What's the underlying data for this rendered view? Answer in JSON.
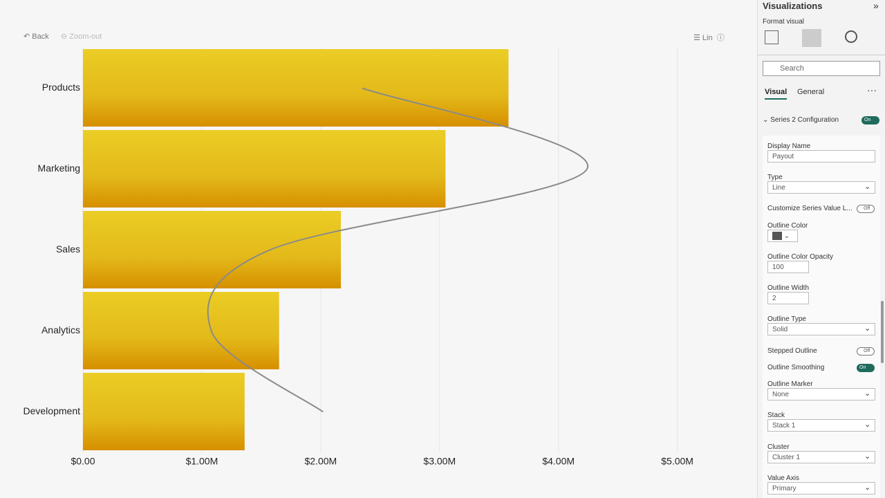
{
  "toolbar": {
    "back": "Back",
    "zoom_out": "Zoom-out",
    "view": "Lin"
  },
  "chart_data": {
    "type": "bar",
    "orientation": "horizontal",
    "categories": [
      "Products",
      "Marketing",
      "Sales",
      "Analytics",
      "Development"
    ],
    "series": [
      {
        "type": "bar",
        "color": "#e6c41e",
        "values": [
          3.58,
          3.05,
          2.17,
          1.65,
          1.36
        ]
      },
      {
        "type": "line",
        "color": "#8a8a8a",
        "smooth": true,
        "values": [
          2.35,
          4.24,
          1.57,
          1.08,
          2.02
        ]
      }
    ],
    "xlim": [
      0,
      5.2
    ],
    "xticks": [
      {
        "value": 0,
        "label": "$0.00"
      },
      {
        "value": 1,
        "label": "$1.00M"
      },
      {
        "value": 2,
        "label": "$2.00M"
      },
      {
        "value": 3,
        "label": "$3.00M"
      },
      {
        "value": 4,
        "label": "$4.00M"
      },
      {
        "value": 5,
        "label": "$5.00M"
      }
    ],
    "grid": true
  },
  "panel": {
    "title": "Visualizations",
    "subtitle": "Format visual",
    "search": "Search",
    "tabs": [
      "Visual",
      "General"
    ],
    "section": "Series 2 Configuration",
    "section_toggle": "On",
    "fields": [
      {
        "label": "Display Name",
        "control": "Payout"
      },
      {
        "label": "Type",
        "control": "Line"
      },
      {
        "label": "Customize Series Value L...",
        "control": "Off"
      },
      {
        "label": "Outline Color"
      },
      {
        "label": "Outline Color Opacity",
        "control": "100"
      },
      {
        "label": "Outline Width",
        "control": "2"
      },
      {
        "label": "Outline Type",
        "control": "Solid"
      },
      {
        "label": "Stepped Outline",
        "control": "Off"
      },
      {
        "label": "Outline Smoothing",
        "control": "On"
      },
      {
        "label": "Outline Marker",
        "control": "None"
      },
      {
        "label": "Stack",
        "control": "Stack 1"
      },
      {
        "label": "Cluster",
        "control": "Cluster 1"
      },
      {
        "label": "Value Axis",
        "control": "Primary"
      }
    ]
  }
}
